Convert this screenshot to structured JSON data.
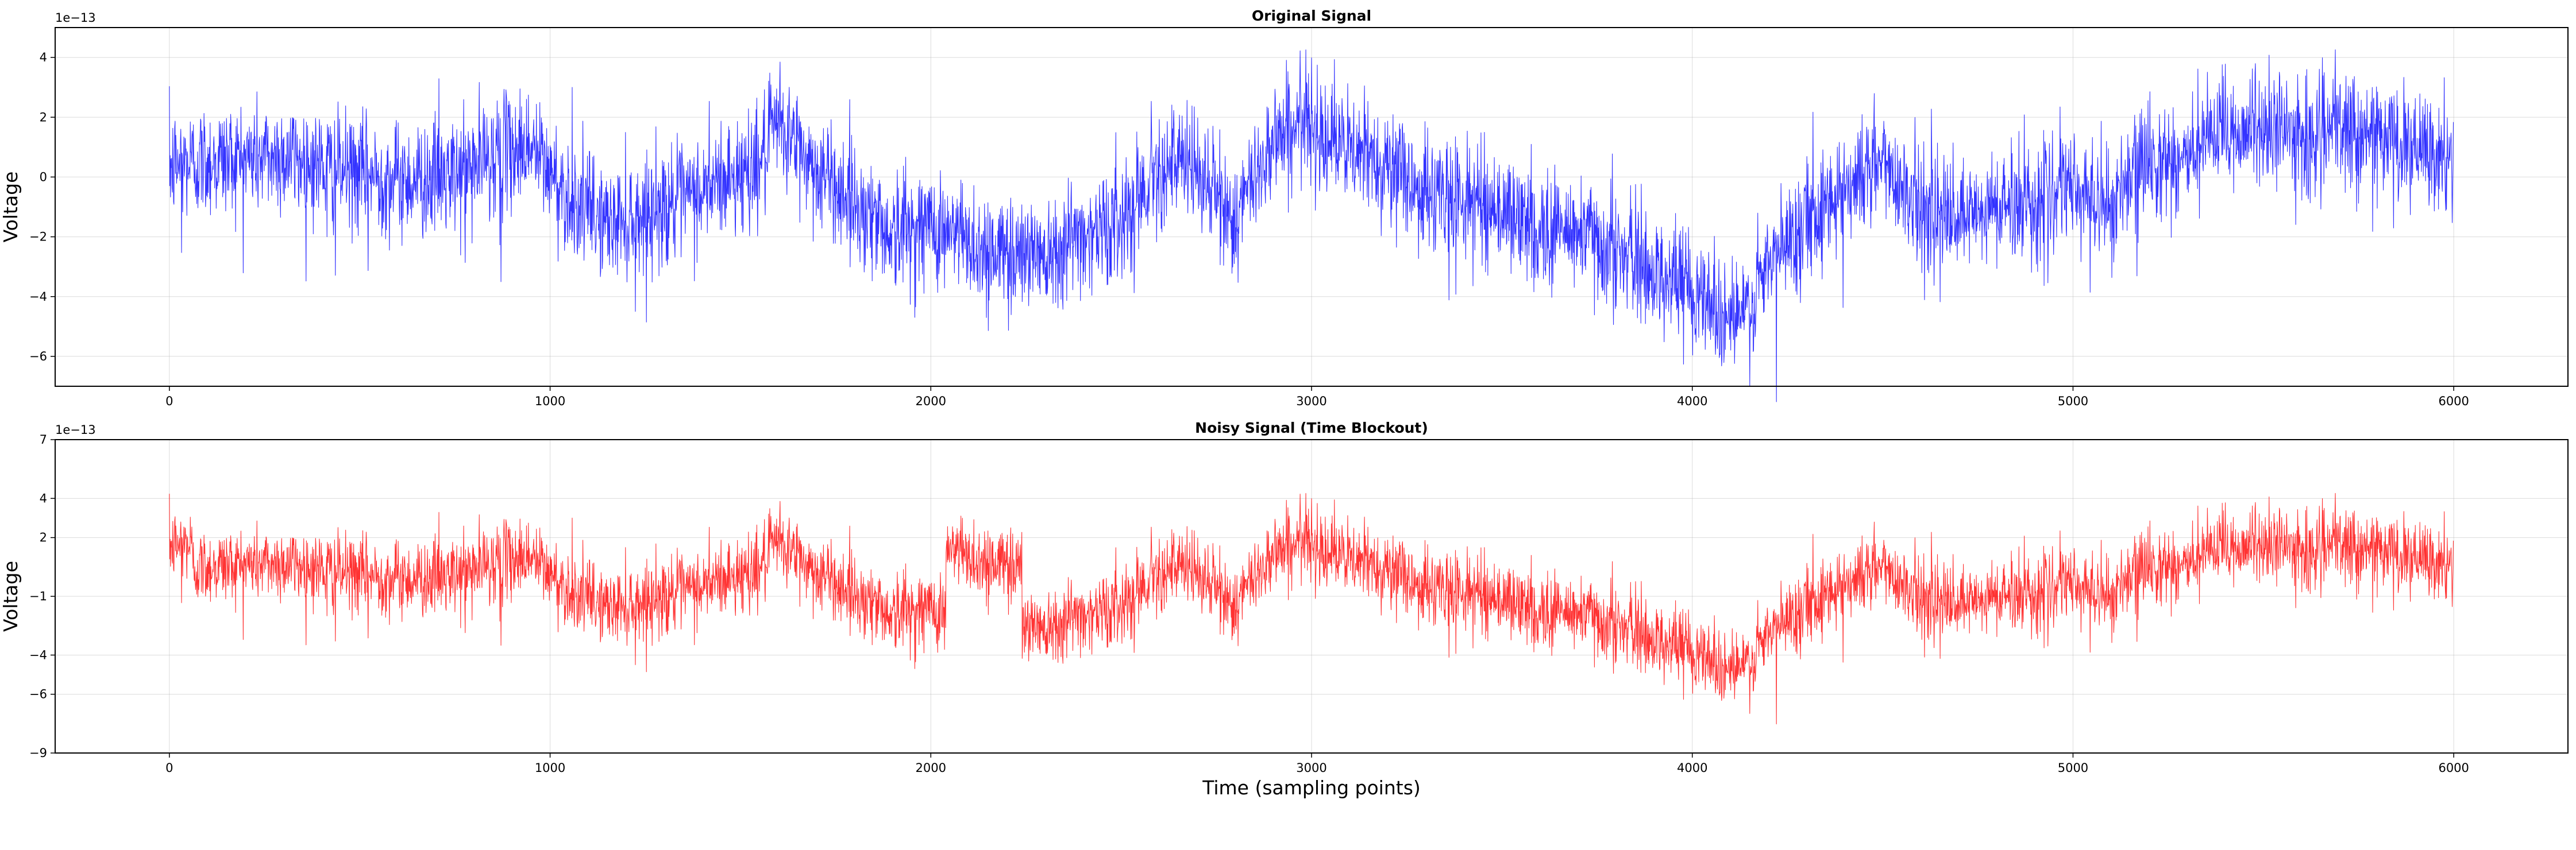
{
  "chart_data": [
    {
      "type": "line",
      "title": "Original Signal",
      "xlabel": "",
      "ylabel": "Voltage",
      "y_multiplier": "1e−13",
      "xlim": [
        -300,
        6300
      ],
      "ylim": [
        -7.0,
        5.0
      ],
      "xticks": [
        0,
        1000,
        2000,
        3000,
        4000,
        5000,
        6000
      ],
      "xtick_labels": [
        "0",
        "1000",
        "2000",
        "3000",
        "4000",
        "5000",
        "6000"
      ],
      "yticks": [
        -6,
        -4,
        -2,
        0,
        2,
        4
      ],
      "ytick_labels": [
        "−6",
        "−4",
        "−2",
        "0",
        "2",
        "4"
      ],
      "grid": true,
      "color": "#0000ff",
      "n_points": 6000,
      "trend_x": [
        0,
        150,
        300,
        450,
        600,
        750,
        850,
        950,
        1050,
        1150,
        1250,
        1350,
        1450,
        1550,
        1600,
        1700,
        1800,
        1900,
        2000,
        2100,
        2200,
        2300,
        2400,
        2500,
        2600,
        2700,
        2800,
        2900,
        3000,
        3100,
        3200,
        3300,
        3400,
        3500,
        3600,
        3700,
        3800,
        3900,
        4000,
        4100,
        4150,
        4200,
        4300,
        4400,
        4500,
        4600,
        4700,
        4800,
        4900,
        5000,
        5100,
        5200,
        5300,
        5400,
        5500,
        5600,
        5700,
        5800,
        5900,
        6000
      ],
      "trend_y": [
        0.4,
        0.6,
        0.7,
        0.2,
        -0.1,
        0.0,
        0.8,
        1.0,
        -0.7,
        -1.5,
        -1.2,
        -0.8,
        -0.2,
        0.4,
        1.8,
        0.2,
        -0.8,
        -1.9,
        -1.6,
        -2.2,
        -2.6,
        -2.4,
        -1.9,
        -1.5,
        0.5,
        0.2,
        -1.5,
        1.4,
        1.8,
        0.8,
        0.5,
        -0.6,
        -0.7,
        -1.1,
        -1.8,
        -1.8,
        -2.5,
        -3.2,
        -3.6,
        -4.8,
        -4.5,
        -3.0,
        -1.4,
        -0.3,
        0.5,
        -1.0,
        -1.6,
        -1.0,
        -0.8,
        -0.4,
        -1.0,
        0.6,
        0.6,
        1.5,
        1.7,
        1.3,
        1.6,
        1.4,
        0.8,
        0.4
      ],
      "noise_sd": 0.95
    },
    {
      "type": "line",
      "title": "Noisy Signal (Time Blockout)",
      "xlabel": "Time (sampling points)",
      "ylabel": "Voltage",
      "y_multiplier": "1e−13",
      "xlim": [
        -300,
        6300
      ],
      "ylim": [
        -9.0,
        7.0
      ],
      "xticks": [
        0,
        1000,
        2000,
        3000,
        4000,
        5000,
        6000
      ],
      "xtick_labels": [
        "0",
        "1000",
        "2000",
        "3000",
        "4000",
        "5000",
        "6000"
      ],
      "yticks": [
        -9,
        -6,
        -4,
        -1,
        2,
        4,
        7
      ],
      "ytick_labels": [
        "−9",
        "−6",
        "−4",
        "−1",
        "2",
        "4",
        "7"
      ],
      "grid": true,
      "color": "#ff0000",
      "n_points": 6000,
      "blockout_segments": [
        [
          60,
          2040
        ],
        [
          2240,
          6000
        ]
      ],
      "blockout_offsets": [
        [
          0,
          60,
          1.2
        ],
        [
          2040,
          2240,
          3.2
        ],
        [
          6000,
          6000,
          0.0
        ]
      ],
      "noise_sd": 0.95
    }
  ]
}
